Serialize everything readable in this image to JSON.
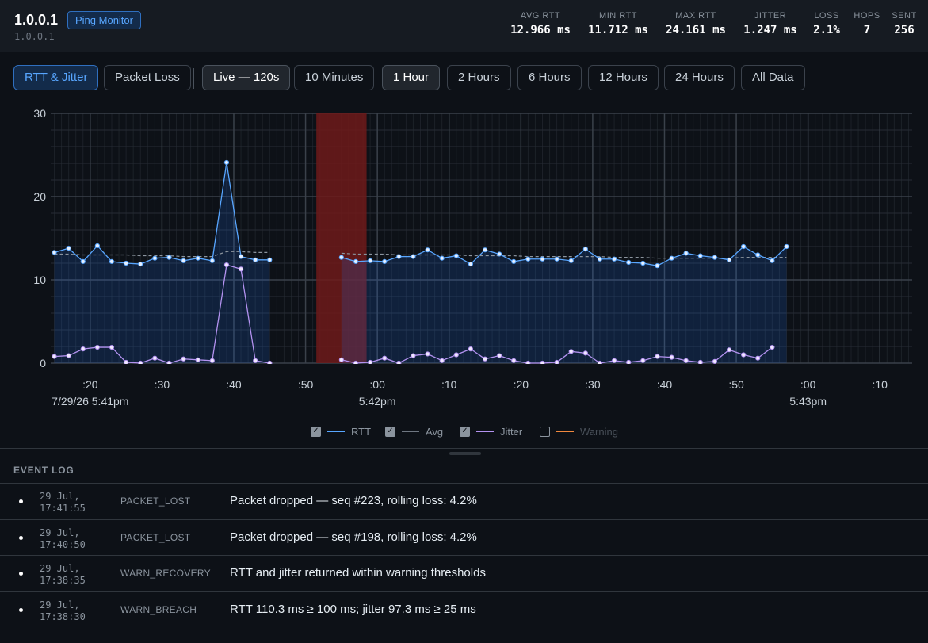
{
  "header": {
    "host": "1.0.0.1",
    "badge": "Ping Monitor",
    "subhost": "1.0.0.1",
    "stats": [
      {
        "label": "AVG RTT",
        "value": "12.966 ms"
      },
      {
        "label": "MIN RTT",
        "value": "11.712 ms"
      },
      {
        "label": "MAX RTT",
        "value": "24.161 ms"
      },
      {
        "label": "JITTER",
        "value": "1.247 ms"
      },
      {
        "label": "LOSS",
        "value": "2.1%"
      },
      {
        "label": "HOPS",
        "value": "7"
      },
      {
        "label": "SENT",
        "value": "256"
      }
    ]
  },
  "toolbar": {
    "view_tabs": [
      "RTT & Jitter",
      "Packet Loss"
    ],
    "ranges": [
      "Live — 120s",
      "10 Minutes",
      "1 Hour",
      "2 Hours",
      "6 Hours",
      "12 Hours",
      "24 Hours",
      "All Data"
    ],
    "active_view": "RTT & Jitter",
    "active_range": "Live — 120s",
    "secondary_highlight": "1 Hour"
  },
  "legend": [
    {
      "label": "RTT",
      "checked": true,
      "color": "#58a6ff"
    },
    {
      "label": "Avg",
      "checked": true,
      "color": "#8b949e"
    },
    {
      "label": "Jitter",
      "checked": true,
      "color": "#b392f0"
    },
    {
      "label": "Warning",
      "checked": false,
      "color": "#f0883e"
    }
  ],
  "event_log": {
    "title": "EVENT LOG",
    "events": [
      {
        "date": "29 Jul,",
        "time": "17:41:55",
        "type": "PACKET_LOST",
        "message": "Packet dropped — seq #223, rolling loss: 4.2%"
      },
      {
        "date": "29 Jul,",
        "time": "17:40:50",
        "type": "PACKET_LOST",
        "message": "Packet dropped — seq #198, rolling loss: 4.2%"
      },
      {
        "date": "29 Jul,",
        "time": "17:38:35",
        "type": "WARN_RECOVERY",
        "message": "RTT and jitter returned within warning thresholds"
      },
      {
        "date": "29 Jul,",
        "time": "17:38:30",
        "type": "WARN_BREACH",
        "message": "RTT 110.3 ms ≥ 100 ms; jitter 97.3 ms ≥ 25 ms"
      }
    ]
  },
  "chart_data": {
    "type": "line",
    "ylim": [
      0,
      30
    ],
    "y_ticks": [
      0,
      10,
      20,
      30
    ],
    "x_tick_labels": [
      ":20",
      ":30",
      ":40",
      ":50",
      ":00",
      ":10",
      ":20",
      ":30",
      ":40",
      ":50",
      ":00",
      ":10"
    ],
    "x_tick_seconds": [
      20,
      30,
      40,
      50,
      60,
      70,
      80,
      90,
      100,
      110,
      120,
      130
    ],
    "x_major_labels": [
      {
        "text": "7/29/26 5:41pm",
        "second": 20
      },
      {
        "text": "5:42pm",
        "second": 60
      },
      {
        "text": "5:43pm",
        "second": 120
      }
    ],
    "xlim_seconds": [
      14.5,
      134.5
    ],
    "loss_region_seconds": [
      51.5,
      58.5
    ],
    "colors": {
      "rtt": "#58a6ff",
      "avg": "#8b949e",
      "jitter": "#b392f0",
      "loss": "#6e1a1a"
    },
    "series": [
      {
        "name": "RTT",
        "x": [
          15,
          17,
          19,
          21,
          23,
          25,
          27,
          29,
          31,
          33,
          35,
          37,
          39,
          41,
          43,
          45,
          47,
          49,
          51,
          53,
          55,
          57,
          59,
          61,
          63,
          65,
          67,
          69,
          71,
          73,
          75,
          77,
          79,
          81,
          83,
          85,
          87,
          89,
          91,
          93,
          95,
          97,
          99,
          101,
          103,
          105,
          107,
          109,
          111,
          113,
          115,
          117,
          119,
          121,
          123,
          125,
          127,
          129,
          131,
          133,
          135
        ],
        "values": [
          13.3,
          13.8,
          12.2,
          14.1,
          12.2,
          12.0,
          11.9,
          12.6,
          12.7,
          12.3,
          12.6,
          12.3,
          24.1,
          12.8,
          12.4,
          12.4,
          null,
          null,
          null,
          null,
          12.7,
          12.2,
          12.3,
          12.2,
          12.8,
          12.8,
          13.6,
          12.6,
          12.9,
          11.9,
          13.6,
          13.1,
          12.2,
          12.5,
          12.5,
          12.5,
          12.3,
          13.7,
          12.5,
          12.5,
          12.1,
          12.0,
          11.7,
          12.6,
          13.2,
          12.9,
          12.7,
          12.4,
          14.0,
          13.0,
          12.3,
          14.0,
          null,
          null,
          null,
          null,
          null,
          null,
          null,
          null,
          null
        ],
        "avg": [
          13.1,
          13.1,
          13.0,
          13.0,
          13.0,
          13.0,
          12.9,
          12.9,
          12.9,
          12.8,
          12.8,
          12.8,
          13.4,
          13.4,
          13.3,
          13.3,
          null,
          null,
          null,
          null,
          13.2,
          13.1,
          13.1,
          13.1,
          13.0,
          13.0,
          13.0,
          13.0,
          13.0,
          12.9,
          12.9,
          12.9,
          12.9,
          12.8,
          12.8,
          12.8,
          12.8,
          12.8,
          12.8,
          12.7,
          12.7,
          12.7,
          12.6,
          12.6,
          12.6,
          12.6,
          12.6,
          12.6,
          12.7,
          12.7,
          12.7,
          12.7,
          null,
          null,
          null,
          null,
          null,
          null,
          null,
          null,
          null
        ]
      },
      {
        "name": "Jitter",
        "x": [
          15,
          17,
          19,
          21,
          23,
          25,
          27,
          29,
          31,
          33,
          35,
          37,
          39,
          41,
          43,
          45,
          47,
          49,
          51,
          53,
          55,
          57,
          59,
          61,
          63,
          65,
          67,
          69,
          71,
          73,
          75,
          77,
          79,
          81,
          83,
          85,
          87,
          89,
          91,
          93,
          95,
          97,
          99,
          101,
          103,
          105,
          107,
          109,
          111,
          113,
          115,
          117
        ],
        "values": [
          0.8,
          0.9,
          1.7,
          1.9,
          1.9,
          0.1,
          0.0,
          0.6,
          0.0,
          0.5,
          0.4,
          0.3,
          11.8,
          11.3,
          0.3,
          0.0,
          null,
          null,
          null,
          null,
          0.4,
          0.0,
          0.1,
          0.6,
          0.0,
          0.9,
          1.1,
          0.3,
          1.0,
          1.7,
          0.5,
          0.9,
          0.3,
          0.0,
          0.0,
          0.1,
          1.4,
          1.2,
          0.0,
          0.3,
          0.1,
          0.3,
          0.8,
          0.7,
          0.3,
          0.1,
          0.2,
          1.6,
          1.0,
          0.6,
          1.9,
          null
        ]
      }
    ]
  }
}
